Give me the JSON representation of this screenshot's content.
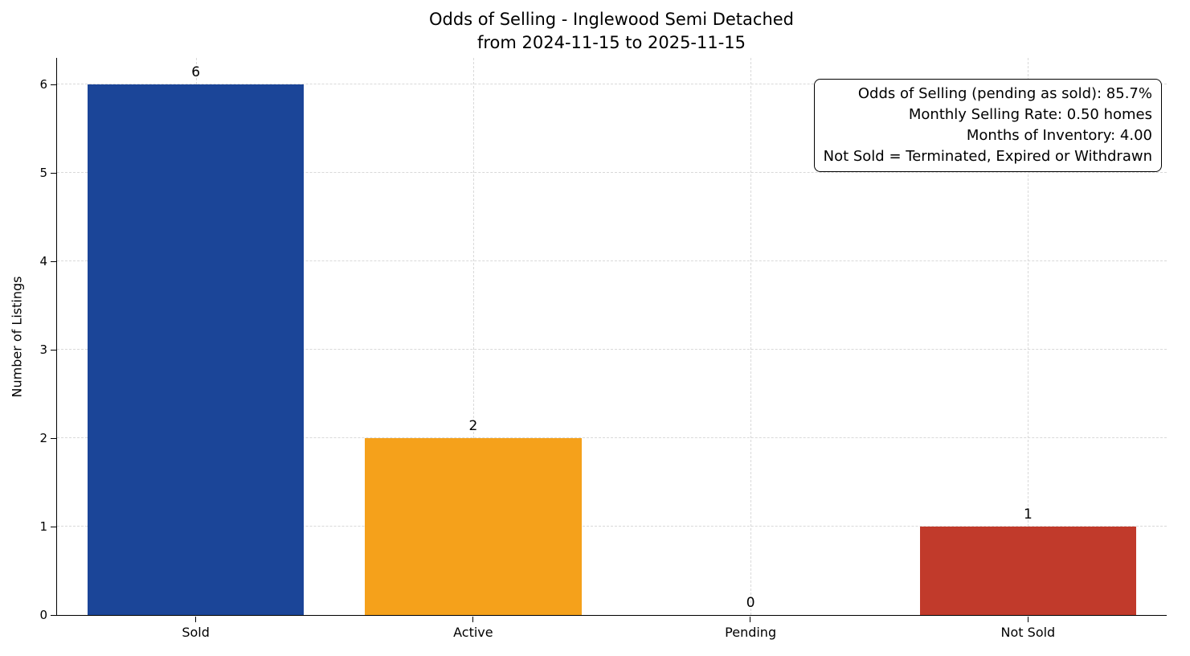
{
  "title": {
    "line1": "Odds of Selling - Inglewood Semi Detached",
    "line2": "from 2024-11-15 to 2025-11-15"
  },
  "annotation": {
    "lines": [
      "Odds of Selling (pending as sold): 85.7%",
      "Monthly Selling Rate: 0.50 homes",
      "Months of Inventory: 4.00",
      "Not Sold = Terminated, Expired or Withdrawn"
    ]
  },
  "chart_data": {
    "type": "bar",
    "title": "Odds of Selling - Inglewood Semi Detached from 2024-11-15 to 2025-11-15",
    "categories": [
      "Sold",
      "Active",
      "Pending",
      "Not Sold"
    ],
    "values": [
      6,
      2,
      0,
      1
    ],
    "value_labels": [
      "6",
      "2",
      "0",
      "1"
    ],
    "bar_colors": [
      "#1b4598",
      "#f5a11b",
      "#888888",
      "#c13a2b"
    ],
    "xlabel": "",
    "ylabel": "Number of Listings",
    "ylim": [
      0,
      6.3
    ],
    "yticks": [
      0,
      1,
      2,
      3,
      4,
      5,
      6
    ],
    "grid": "dashed",
    "legend": "none"
  }
}
